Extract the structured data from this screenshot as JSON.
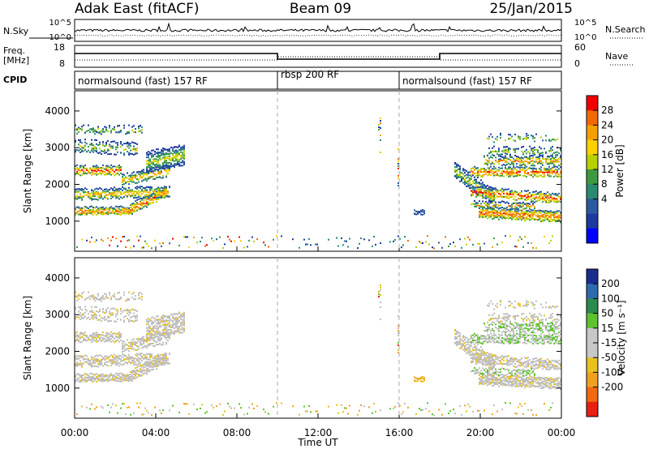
{
  "header": {
    "station": "Adak East (fitACF)",
    "beam": "Beam 09",
    "date": "25/Jan/2015"
  },
  "noise_panel": {
    "left_label": "N.Sky",
    "right_label": "N.Search",
    "left_ticks": [
      "10^5",
      "10^0"
    ],
    "right_ticks": [
      "10^5",
      "10^0"
    ]
  },
  "freq_panel": {
    "left_label_1": "Freq.",
    "left_label_2": "[MHz]",
    "right_label": "Nave",
    "left_ticks": [
      "18",
      "8"
    ],
    "right_ticks": [
      "60",
      "0"
    ]
  },
  "cpid_panel": {
    "label": "CPID",
    "segments": [
      {
        "label": "normalsound (fast) 157 RF",
        "start": 0,
        "end": 10
      },
      {
        "label": "rbsp 200 RF",
        "start": 10,
        "end": 16
      },
      {
        "label": "normalsound (fast) 157 RF",
        "start": 16,
        "end": 24
      }
    ]
  },
  "chart_data": [
    {
      "type": "heatmap",
      "panel": "power",
      "ylabel": "Slant Range [km]",
      "ylim": [
        180,
        4550
      ],
      "yticks": [
        "1000",
        "2000",
        "3000",
        "4000"
      ],
      "colorbar": {
        "label": "Power [dB]",
        "ticks": [
          "28",
          "24",
          "20",
          "16",
          "12",
          "8",
          "4"
        ],
        "colors": [
          "#f20000",
          "#f06a00",
          "#f5a000",
          "#ffd000",
          "#b8d000",
          "#3d9a40",
          "#2a8a70",
          "#2a5aa0",
          "#1c3aa0",
          "#0000ff"
        ]
      }
    },
    {
      "type": "heatmap",
      "panel": "velocity",
      "ylabel": "Slant Range [km]",
      "ylim": [
        180,
        4550
      ],
      "yticks": [
        "1000",
        "2000",
        "3000",
        "4000"
      ],
      "colorbar": {
        "label": "Velocity [m s⁻¹]",
        "ticks": [
          "200",
          "100",
          "50",
          "15",
          "-15",
          "-50",
          "-100",
          "-200"
        ],
        "colors": [
          "#1a2c8c",
          "#2e6ab0",
          "#2a8a50",
          "#5ec22e",
          "#c8c8c8",
          "#c8c8c8",
          "#e8c020",
          "#f0a020",
          "#f06a10",
          "#e82010"
        ]
      }
    }
  ],
  "x_axis": {
    "label": "Time UT",
    "ticks": [
      "00:00",
      "04:00",
      "08:00",
      "12:00",
      "16:00",
      "20:00",
      "00:00"
    ],
    "tick_hours": [
      0,
      4,
      8,
      12,
      16,
      20,
      24
    ]
  },
  "colors": {
    "ground_scatter": "#bebebe",
    "mode_boundary": "#aaaaaa"
  }
}
